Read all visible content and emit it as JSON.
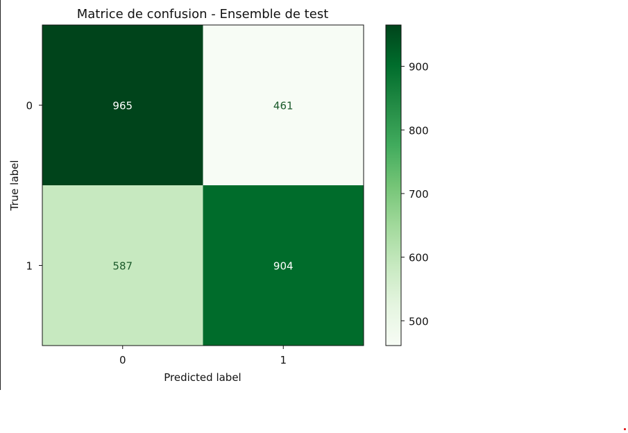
{
  "chart_data": {
    "type": "heatmap",
    "title": "Matrice de confusion - Ensemble de test",
    "xlabel": "Predicted label",
    "ylabel": "True label",
    "x_categories": [
      "0",
      "1"
    ],
    "y_categories": [
      "0",
      "1"
    ],
    "matrix": [
      [
        965,
        461
      ],
      [
        587,
        904
      ]
    ],
    "colormap": "Greens",
    "colorbar": {
      "range": [
        461,
        965
      ],
      "ticks": [
        "500",
        "600",
        "700",
        "800",
        "900"
      ]
    },
    "colors": {
      "cell_dark_text": "#ffffff",
      "cell_light_text": "#1a5a2a"
    }
  }
}
